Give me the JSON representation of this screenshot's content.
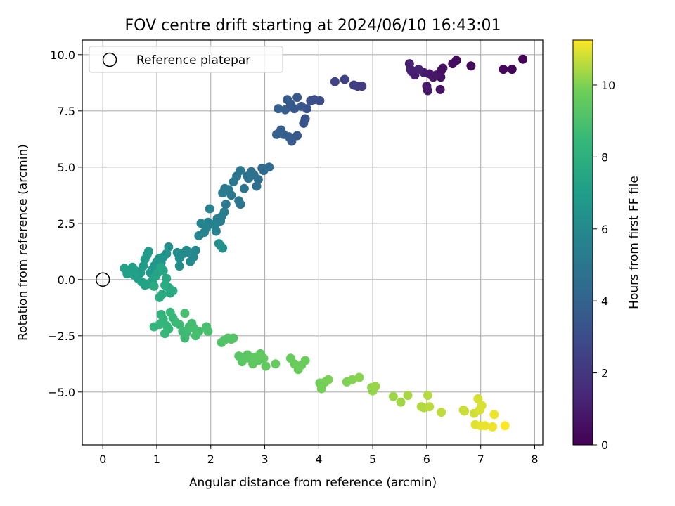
{
  "chart_data": {
    "type": "scatter",
    "title": "FOV centre drift starting at 2024/06/10 16:43:01",
    "xlabel": "Angular distance from reference (arcmin)",
    "ylabel": "Rotation from reference (arcmin)",
    "xlim": [
      -0.38,
      8.15
    ],
    "ylim": [
      -7.35,
      10.65
    ],
    "xticks": [
      0,
      1,
      2,
      3,
      4,
      5,
      6,
      7,
      8
    ],
    "yticks": [
      -5.0,
      -2.5,
      0.0,
      2.5,
      5.0,
      7.5,
      10.0
    ],
    "grid": true,
    "legend": {
      "placement": "top-left",
      "entries": [
        "Reference platepar"
      ]
    },
    "reference_point": {
      "x": 0.0,
      "y": 0.0,
      "label": "Reference platepar"
    },
    "colorbar": {
      "label": "Hours from first FF file",
      "min": 0,
      "max": 11.25,
      "ticks": [
        0,
        2,
        4,
        6,
        8,
        10
      ],
      "colormap": "viridis"
    },
    "points": [
      [
        7.78,
        9.8,
        0.05
      ],
      [
        7.58,
        9.35,
        0.15
      ],
      [
        7.42,
        9.35,
        0.2
      ],
      [
        6.82,
        9.5,
        0.35
      ],
      [
        6.55,
        9.75,
        0.4
      ],
      [
        6.48,
        9.6,
        0.45
      ],
      [
        6.27,
        9.3,
        0.55
      ],
      [
        6.3,
        9.4,
        0.55
      ],
      [
        6.26,
        9.0,
        0.6
      ],
      [
        6.25,
        8.45,
        0.65
      ],
      [
        6.18,
        9.1,
        0.7
      ],
      [
        6.12,
        9.0,
        0.75
      ],
      [
        6.05,
        9.15,
        0.8
      ],
      [
        6.02,
        8.4,
        0.85
      ],
      [
        6.0,
        8.6,
        0.9
      ],
      [
        5.95,
        9.2,
        0.95
      ],
      [
        5.78,
        9.1,
        1.0
      ],
      [
        5.72,
        9.25,
        1.05
      ],
      [
        5.68,
        9.6,
        1.1
      ],
      [
        5.7,
        9.35,
        1.15
      ],
      [
        5.85,
        9.35,
        1.2
      ],
      [
        4.8,
        8.6,
        2.2
      ],
      [
        4.72,
        8.6,
        2.3
      ],
      [
        4.65,
        8.65,
        2.4
      ],
      [
        4.48,
        8.9,
        2.5
      ],
      [
        4.3,
        8.8,
        2.6
      ],
      [
        4.02,
        7.95,
        3.0
      ],
      [
        3.92,
        8.0,
        3.05
      ],
      [
        3.85,
        7.95,
        3.1
      ],
      [
        3.78,
        7.6,
        3.2
      ],
      [
        3.75,
        7.15,
        3.25
      ],
      [
        3.72,
        6.95,
        3.3
      ],
      [
        3.68,
        7.7,
        3.4
      ],
      [
        3.6,
        8.1,
        3.45
      ],
      [
        3.55,
        7.6,
        3.5
      ],
      [
        3.6,
        6.4,
        3.5
      ],
      [
        3.5,
        6.15,
        3.55
      ],
      [
        3.48,
        7.8,
        3.6
      ],
      [
        3.42,
        8.0,
        3.65
      ],
      [
        3.38,
        7.55,
        3.7
      ],
      [
        3.35,
        6.45,
        3.75
      ],
      [
        3.3,
        6.65,
        3.8
      ],
      [
        3.27,
        6.55,
        3.8
      ],
      [
        3.22,
        6.45,
        3.85
      ],
      [
        3.25,
        7.6,
        3.9
      ],
      [
        3.45,
        6.35,
        3.7
      ],
      [
        3.08,
        5.0,
        4.3
      ],
      [
        2.98,
        4.85,
        4.35
      ],
      [
        2.95,
        4.95,
        4.4
      ],
      [
        2.88,
        4.45,
        4.5
      ],
      [
        2.85,
        4.15,
        4.55
      ],
      [
        2.8,
        4.65,
        4.6
      ],
      [
        2.75,
        4.8,
        4.65
      ],
      [
        2.7,
        4.5,
        4.7
      ],
      [
        2.68,
        4.6,
        4.75
      ],
      [
        2.62,
        4.05,
        4.8
      ],
      [
        2.55,
        4.85,
        4.85
      ],
      [
        2.55,
        3.35,
        4.9
      ],
      [
        2.52,
        3.5,
        4.95
      ],
      [
        2.48,
        4.6,
        5.0
      ],
      [
        2.42,
        4.35,
        5.05
      ],
      [
        2.38,
        3.75,
        5.1
      ],
      [
        2.33,
        4.0,
        5.15
      ],
      [
        2.28,
        3.35,
        5.2
      ],
      [
        2.26,
        4.05,
        5.2
      ],
      [
        2.22,
        3.85,
        5.25
      ],
      [
        2.2,
        2.8,
        5.3
      ],
      [
        2.25,
        3.0,
        5.35
      ],
      [
        2.18,
        2.6,
        5.4
      ],
      [
        2.12,
        2.7,
        5.45
      ],
      [
        2.08,
        2.4,
        5.5
      ],
      [
        2.1,
        2.15,
        5.55
      ],
      [
        2.05,
        2.45,
        5.6
      ],
      [
        1.98,
        3.15,
        5.65
      ],
      [
        1.95,
        2.55,
        5.65
      ],
      [
        1.92,
        2.3,
        5.7
      ],
      [
        1.88,
        2.1,
        5.75
      ],
      [
        1.82,
        2.5,
        5.8
      ],
      [
        1.78,
        1.95,
        5.85
      ],
      [
        1.72,
        1.3,
        5.9
      ],
      [
        1.68,
        1.0,
        5.95
      ],
      [
        1.62,
        0.8,
        6.0
      ],
      [
        1.6,
        1.2,
        6.0
      ],
      [
        1.55,
        1.3,
        6.05
      ],
      [
        1.48,
        1.15,
        6.1
      ],
      [
        1.42,
        0.95,
        6.15
      ],
      [
        1.42,
        0.6,
        6.2
      ],
      [
        1.38,
        1.2,
        6.2
      ],
      [
        1.22,
        1.45,
        6.3
      ],
      [
        2.15,
        1.6,
        6.35
      ],
      [
        2.22,
        1.4,
        6.4
      ],
      [
        2.18,
        1.5,
        6.4
      ],
      [
        1.18,
        1.15,
        6.5
      ],
      [
        1.12,
        1.0,
        6.55
      ],
      [
        1.08,
        0.75,
        6.6
      ],
      [
        1.05,
        0.95,
        6.65
      ],
      [
        1.0,
        0.8,
        6.7
      ],
      [
        0.95,
        0.6,
        6.75
      ],
      [
        0.92,
        0.45,
        6.8
      ],
      [
        0.88,
        0.3,
        6.85
      ],
      [
        0.85,
        1.25,
        6.85
      ],
      [
        0.82,
        1.1,
        6.9
      ],
      [
        0.78,
        0.9,
        6.9
      ],
      [
        0.75,
        0.6,
        6.95
      ],
      [
        0.7,
        0.3,
        7.0
      ],
      [
        0.65,
        0.05,
        7.0
      ],
      [
        0.6,
        0.4,
        7.05
      ],
      [
        0.55,
        0.55,
        7.1
      ],
      [
        0.5,
        0.35,
        7.1
      ],
      [
        0.45,
        0.25,
        7.15
      ],
      [
        0.4,
        0.5,
        7.2
      ],
      [
        0.58,
        0.2,
        7.2
      ],
      [
        0.72,
        -0.1,
        7.25
      ],
      [
        0.78,
        -0.25,
        7.3
      ],
      [
        0.85,
        -0.2,
        7.3
      ],
      [
        0.92,
        -0.05,
        7.35
      ],
      [
        0.98,
        0.15,
        7.4
      ],
      [
        1.02,
        0.3,
        7.45
      ],
      [
        1.08,
        0.55,
        7.45
      ],
      [
        1.12,
        0.4,
        7.5
      ],
      [
        1.18,
        0.05,
        7.55
      ],
      [
        1.22,
        -0.35,
        7.6
      ],
      [
        1.25,
        -0.6,
        7.65
      ],
      [
        1.3,
        -0.5,
        7.7
      ],
      [
        1.1,
        -0.65,
        7.7
      ],
      [
        1.05,
        -0.8,
        7.75
      ],
      [
        1.15,
        -0.25,
        7.75
      ],
      [
        0.95,
        -0.3,
        7.8
      ],
      [
        1.08,
        -1.55,
        8.2
      ],
      [
        1.12,
        -1.75,
        8.25
      ],
      [
        1.05,
        -2.0,
        8.3
      ],
      [
        0.95,
        -2.1,
        8.3
      ],
      [
        1.18,
        -2.05,
        8.35
      ],
      [
        1.22,
        -2.2,
        8.4
      ],
      [
        1.15,
        -2.4,
        8.45
      ],
      [
        1.3,
        -1.7,
        8.45
      ],
      [
        1.25,
        -1.45,
        8.5
      ],
      [
        1.35,
        -1.9,
        8.55
      ],
      [
        1.42,
        -2.0,
        8.6
      ],
      [
        1.48,
        -2.3,
        8.6
      ],
      [
        1.52,
        -2.6,
        8.65
      ],
      [
        1.55,
        -2.35,
        8.65
      ],
      [
        1.6,
        -2.1,
        8.7
      ],
      [
        1.65,
        -1.95,
        8.75
      ],
      [
        1.68,
        -2.15,
        8.8
      ],
      [
        1.72,
        -2.5,
        8.85
      ],
      [
        1.78,
        -2.3,
        8.85
      ],
      [
        1.52,
        -1.5,
        8.9
      ],
      [
        1.92,
        -2.1,
        8.9
      ],
      [
        1.95,
        -2.3,
        8.95
      ],
      [
        2.2,
        -2.8,
        9.1
      ],
      [
        2.25,
        -2.7,
        9.15
      ],
      [
        2.32,
        -2.6,
        9.2
      ],
      [
        2.38,
        -2.65,
        9.2
      ],
      [
        2.42,
        -2.6,
        9.25
      ],
      [
        2.52,
        -3.4,
        9.3
      ],
      [
        2.58,
        -3.65,
        9.35
      ],
      [
        2.62,
        -3.5,
        9.35
      ],
      [
        2.68,
        -3.35,
        9.4
      ],
      [
        2.72,
        -3.5,
        9.4
      ],
      [
        2.78,
        -3.75,
        9.45
      ],
      [
        2.82,
        -3.45,
        9.45
      ],
      [
        2.88,
        -3.6,
        9.5
      ],
      [
        2.92,
        -3.3,
        9.5
      ],
      [
        2.98,
        -3.5,
        9.55
      ],
      [
        3.02,
        -3.85,
        9.55
      ],
      [
        3.2,
        -3.75,
        9.6
      ],
      [
        3.48,
        -3.5,
        9.65
      ],
      [
        3.55,
        -3.75,
        9.7
      ],
      [
        3.62,
        -4.0,
        9.7
      ],
      [
        3.68,
        -3.8,
        9.75
      ],
      [
        3.75,
        -3.6,
        9.75
      ],
      [
        4.02,
        -4.6,
        9.85
      ],
      [
        4.05,
        -4.85,
        9.9
      ],
      [
        4.12,
        -4.55,
        9.9
      ],
      [
        4.18,
        -4.45,
        9.95
      ],
      [
        4.52,
        -4.55,
        10.0
      ],
      [
        4.62,
        -4.45,
        10.05
      ],
      [
        4.75,
        -4.35,
        10.1
      ],
      [
        4.98,
        -4.8,
        10.15
      ],
      [
        5.0,
        -4.95,
        10.2
      ],
      [
        5.05,
        -4.75,
        10.25
      ],
      [
        5.38,
        -5.2,
        10.3
      ],
      [
        5.52,
        -5.45,
        10.35
      ],
      [
        5.65,
        -5.15,
        10.4
      ],
      [
        5.9,
        -5.65,
        10.5
      ],
      [
        5.95,
        -5.7,
        10.5
      ],
      [
        6.02,
        -5.15,
        10.55
      ],
      [
        6.05,
        -5.65,
        10.6
      ],
      [
        6.27,
        -5.9,
        10.65
      ],
      [
        6.68,
        -5.8,
        10.7
      ],
      [
        6.7,
        -5.85,
        10.75
      ],
      [
        6.88,
        -5.95,
        10.8
      ],
      [
        6.95,
        -5.3,
        10.85
      ],
      [
        6.98,
        -5.8,
        10.9
      ],
      [
        7.02,
        -5.6,
        10.9
      ],
      [
        6.9,
        -6.45,
        10.95
      ],
      [
        7.0,
        -6.5,
        11.0
      ],
      [
        7.08,
        -6.5,
        11.05
      ],
      [
        7.22,
        -6.55,
        11.1
      ],
      [
        7.25,
        -6.0,
        11.1
      ],
      [
        7.45,
        -6.5,
        11.2
      ]
    ]
  }
}
